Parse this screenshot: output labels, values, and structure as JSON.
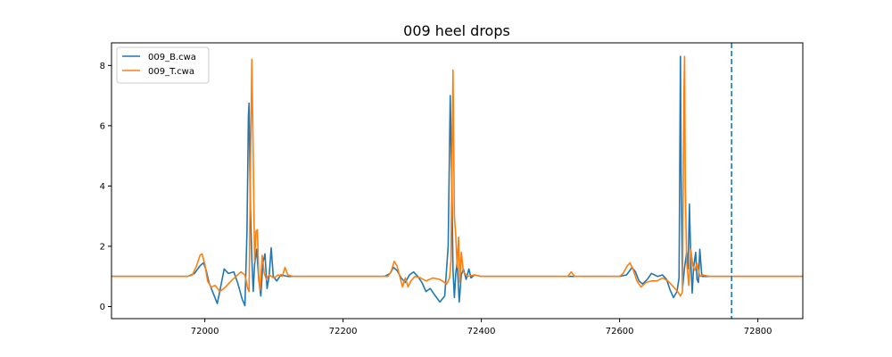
{
  "chart_data": {
    "type": "line",
    "title": "009 heel drops",
    "xlabel": "",
    "ylabel": "",
    "xlim": [
      71865,
      72865
    ],
    "ylim": [
      -0.4,
      8.75
    ],
    "xticks": [
      72000,
      72200,
      72400,
      72600,
      72800
    ],
    "yticks": [
      0,
      2,
      4,
      6,
      8
    ],
    "grid": false,
    "legend": "top-left",
    "vline": {
      "x": 72762,
      "style": "dashed",
      "color": "#1f77b4"
    },
    "series": [
      {
        "name": "009_B.cwa",
        "color": "#1f77b4",
        "points": [
          [
            71865,
            1.0
          ],
          [
            71960,
            1.0
          ],
          [
            71975,
            1.0
          ],
          [
            71985,
            1.1
          ],
          [
            71993,
            1.35
          ],
          [
            71998,
            1.45
          ],
          [
            72002,
            1.2
          ],
          [
            72006,
            0.8
          ],
          [
            72012,
            0.45
          ],
          [
            72018,
            0.1
          ],
          [
            72022,
            0.55
          ],
          [
            72028,
            1.25
          ],
          [
            72034,
            1.1
          ],
          [
            72042,
            1.15
          ],
          [
            72048,
            0.75
          ],
          [
            72054,
            0.25
          ],
          [
            72058,
            0.03
          ],
          [
            72061,
            2.5
          ],
          [
            72063,
            6.3
          ],
          [
            72064,
            6.75
          ],
          [
            72066,
            3.2
          ],
          [
            72068,
            1.6
          ],
          [
            72070,
            0.5
          ],
          [
            72072,
            1.4
          ],
          [
            72075,
            1.9
          ],
          [
            72078,
            0.9
          ],
          [
            72081,
            0.35
          ],
          [
            72084,
            1.45
          ],
          [
            72087,
            1.75
          ],
          [
            72090,
            0.6
          ],
          [
            72093,
            1.0
          ],
          [
            72096,
            1.95
          ],
          [
            72099,
            1.0
          ],
          [
            72104,
            0.85
          ],
          [
            72110,
            1.05
          ],
          [
            72120,
            1.0
          ],
          [
            72260,
            1.0
          ],
          [
            72268,
            1.1
          ],
          [
            72273,
            1.3
          ],
          [
            72278,
            1.2
          ],
          [
            72284,
            0.95
          ],
          [
            72290,
            0.8
          ],
          [
            72296,
            1.05
          ],
          [
            72302,
            1.15
          ],
          [
            72308,
            1.0
          ],
          [
            72314,
            0.8
          ],
          [
            72320,
            0.5
          ],
          [
            72326,
            0.6
          ],
          [
            72332,
            0.4
          ],
          [
            72340,
            0.15
          ],
          [
            72347,
            0.35
          ],
          [
            72352,
            2.0
          ],
          [
            72355,
            7.0
          ],
          [
            72357,
            4.5
          ],
          [
            72359,
            1.2
          ],
          [
            72361,
            0.3
          ],
          [
            72363,
            1.1
          ],
          [
            72365,
            1.5
          ],
          [
            72368,
            0.15
          ],
          [
            72371,
            1.05
          ],
          [
            72374,
            1.25
          ],
          [
            72378,
            0.9
          ],
          [
            72382,
            1.25
          ],
          [
            72385,
            0.95
          ],
          [
            72390,
            1.05
          ],
          [
            72400,
            1.0
          ],
          [
            72600,
            1.0
          ],
          [
            72610,
            1.05
          ],
          [
            72618,
            1.3
          ],
          [
            72623,
            1.15
          ],
          [
            72628,
            0.85
          ],
          [
            72633,
            0.75
          ],
          [
            72640,
            0.9
          ],
          [
            72646,
            1.1
          ],
          [
            72655,
            1.0
          ],
          [
            72662,
            1.05
          ],
          [
            72668,
            0.9
          ],
          [
            72673,
            0.55
          ],
          [
            72678,
            0.3
          ],
          [
            72683,
            0.5
          ],
          [
            72686,
            0.95
          ],
          [
            72688,
            8.3
          ],
          [
            72689,
            4.5
          ],
          [
            72691,
            0.6
          ],
          [
            72694,
            1.3
          ],
          [
            72697,
            1.8
          ],
          [
            72699,
            1.25
          ],
          [
            72701,
            3.4
          ],
          [
            72703,
            1.5
          ],
          [
            72705,
            0.45
          ],
          [
            72707,
            1.3
          ],
          [
            72710,
            1.8
          ],
          [
            72712,
            0.9
          ],
          [
            72714,
            0.8
          ],
          [
            72716,
            1.9
          ],
          [
            72719,
            1.0
          ],
          [
            72725,
            1.0
          ],
          [
            72865,
            1.0
          ]
        ]
      },
      {
        "name": "009_T.cwa",
        "color": "#ff7f0e",
        "points": [
          [
            71865,
            1.0
          ],
          [
            71975,
            1.0
          ],
          [
            71982,
            1.05
          ],
          [
            71988,
            1.35
          ],
          [
            71993,
            1.7
          ],
          [
            71996,
            1.75
          ],
          [
            72000,
            1.4
          ],
          [
            72004,
            0.85
          ],
          [
            72009,
            0.65
          ],
          [
            72015,
            0.7
          ],
          [
            72022,
            0.5
          ],
          [
            72030,
            0.65
          ],
          [
            72038,
            0.85
          ],
          [
            72045,
            1.0
          ],
          [
            72052,
            1.15
          ],
          [
            72058,
            1.05
          ],
          [
            72062,
            0.6
          ],
          [
            72064,
            0.5
          ],
          [
            72066,
            4.5
          ],
          [
            72068,
            8.2
          ],
          [
            72070,
            5.0
          ],
          [
            72072,
            1.5
          ],
          [
            72074,
            2.5
          ],
          [
            72076,
            2.55
          ],
          [
            72078,
            1.0
          ],
          [
            72080,
            0.55
          ],
          [
            72083,
            1.7
          ],
          [
            72086,
            1.1
          ],
          [
            72089,
            0.9
          ],
          [
            72093,
            1.05
          ],
          [
            72100,
            0.95
          ],
          [
            72106,
            1.05
          ],
          [
            72112,
            1.0
          ],
          [
            72116,
            1.3
          ],
          [
            72120,
            1.05
          ],
          [
            72128,
            1.0
          ],
          [
            72265,
            1.0
          ],
          [
            72270,
            1.2
          ],
          [
            72274,
            1.5
          ],
          [
            72278,
            1.35
          ],
          [
            72282,
            1.0
          ],
          [
            72286,
            0.65
          ],
          [
            72290,
            0.95
          ],
          [
            72294,
            0.65
          ],
          [
            72298,
            0.85
          ],
          [
            72304,
            1.0
          ],
          [
            72312,
            0.95
          ],
          [
            72320,
            0.85
          ],
          [
            72330,
            0.95
          ],
          [
            72340,
            0.9
          ],
          [
            72350,
            0.75
          ],
          [
            72354,
            0.95
          ],
          [
            72356,
            1.5
          ],
          [
            72359,
            7.85
          ],
          [
            72361,
            3.0
          ],
          [
            72363,
            2.35
          ],
          [
            72365,
            1.3
          ],
          [
            72367,
            2.3
          ],
          [
            72369,
            0.8
          ],
          [
            72371,
            1.8
          ],
          [
            72374,
            1.15
          ],
          [
            72380,
            1.0
          ],
          [
            72390,
            1.05
          ],
          [
            72400,
            1.0
          ],
          [
            72525,
            1.0
          ],
          [
            72530,
            1.15
          ],
          [
            72535,
            1.0
          ],
          [
            72600,
            1.0
          ],
          [
            72605,
            1.1
          ],
          [
            72611,
            1.35
          ],
          [
            72615,
            1.45
          ],
          [
            72620,
            1.2
          ],
          [
            72625,
            0.85
          ],
          [
            72631,
            0.65
          ],
          [
            72638,
            0.8
          ],
          [
            72646,
            0.85
          ],
          [
            72654,
            0.85
          ],
          [
            72662,
            0.95
          ],
          [
            72670,
            0.85
          ],
          [
            72678,
            0.65
          ],
          [
            72684,
            0.5
          ],
          [
            72688,
            0.35
          ],
          [
            72691,
            0.5
          ],
          [
            72693,
            7.0
          ],
          [
            72694,
            8.3
          ],
          [
            72695,
            4.0
          ],
          [
            72697,
            1.5
          ],
          [
            72700,
            0.7
          ],
          [
            72703,
            1.9
          ],
          [
            72706,
            1.35
          ],
          [
            72709,
            1.2
          ],
          [
            72712,
            1.45
          ],
          [
            72716,
            1.0
          ],
          [
            72720,
            1.05
          ],
          [
            72730,
            1.0
          ],
          [
            72865,
            1.0
          ]
        ]
      }
    ]
  }
}
